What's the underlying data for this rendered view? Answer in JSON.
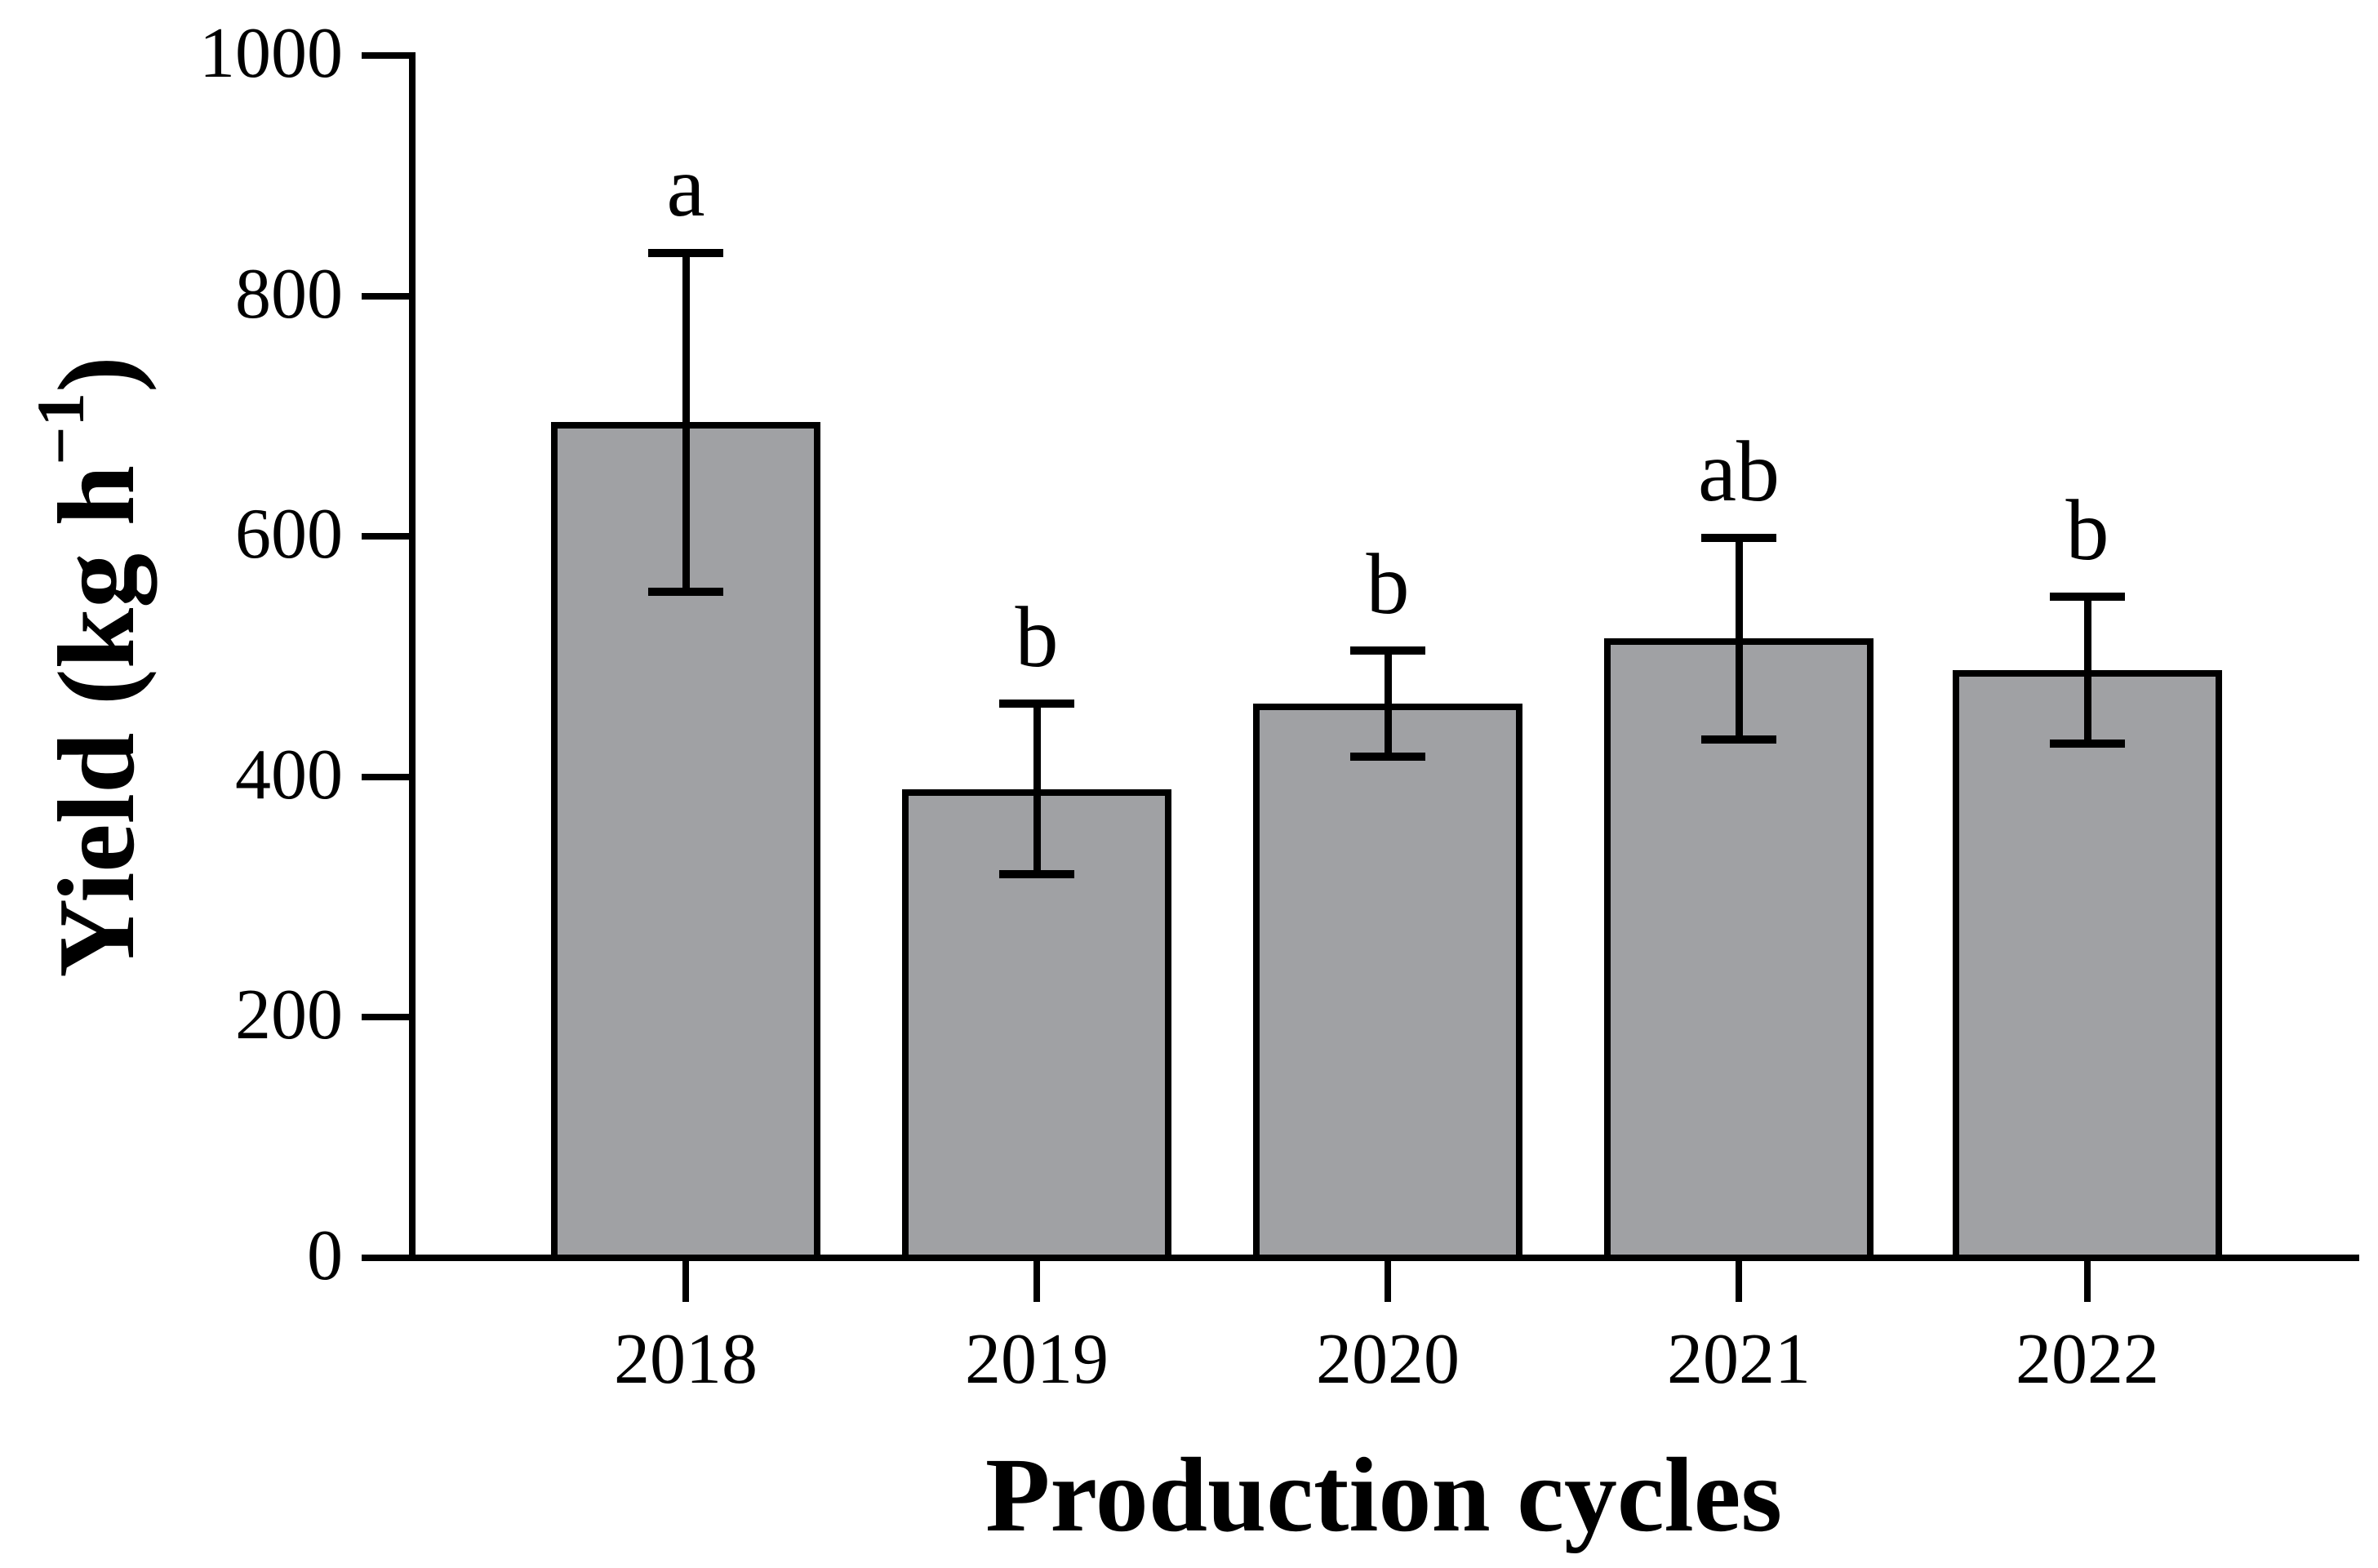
{
  "chart_data": {
    "type": "bar",
    "title": "",
    "xlabel": "Production cycles",
    "ylabel": "Yield (kg h⁻¹)",
    "ylabel_parts": {
      "main": "Yield (kg h",
      "sup": "−1",
      "close": ")"
    },
    "categories": [
      "2018",
      "2019",
      "2020",
      "2021",
      "2022"
    ],
    "values": [
      695,
      390,
      461,
      515,
      489
    ],
    "errors": [
      141,
      71,
      44,
      84,
      61
    ],
    "significance_letters": [
      "a",
      "b",
      "b",
      "ab",
      "b"
    ],
    "yticks": [
      0,
      200,
      400,
      600,
      800,
      1000
    ],
    "ylim": [
      0,
      1000
    ],
    "grid": false,
    "legend": false,
    "error_bar_style": "caps-both-ends",
    "colors": {
      "bar_fill": "#A0A1A4",
      "bar_border": "#000000",
      "axis": "#000000",
      "text": "#000000",
      "background": "#FFFFFF"
    }
  }
}
